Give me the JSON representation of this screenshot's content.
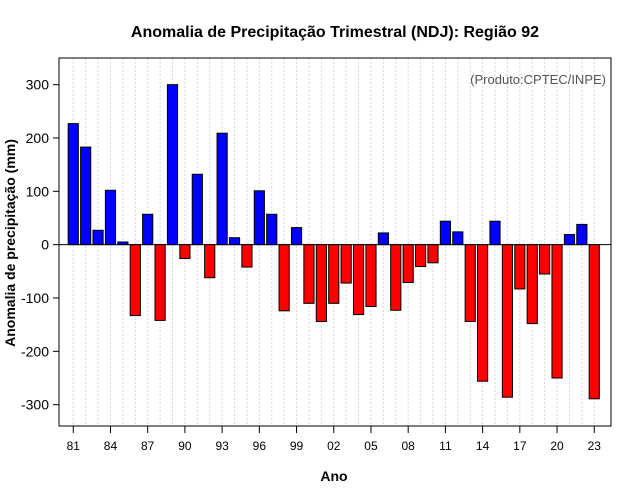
{
  "chart_data": {
    "type": "bar",
    "title": "Anomalia de Precipitação Trimestral (NDJ): Região 92",
    "xlabel": "Ano",
    "ylabel": "Anomalia de precipitação (mm)",
    "annotation": "(Produto:CPTEC/INPE)",
    "ylim": [
      -340,
      350
    ],
    "yticks": [
      300,
      200,
      100,
      0,
      -100,
      -200,
      -300
    ],
    "xtick_labels": [
      "81",
      "84",
      "87",
      "90",
      "93",
      "96",
      "99",
      "02",
      "05",
      "08",
      "11",
      "14",
      "17",
      "20",
      "23"
    ],
    "xtick_years": [
      1981,
      1984,
      1987,
      1990,
      1993,
      1996,
      1999,
      2002,
      2005,
      2008,
      2011,
      2014,
      2017,
      2020,
      2023
    ],
    "grid": true,
    "positive_color": "#0000ff",
    "negative_color": "#ff0000",
    "years": [
      1981,
      1982,
      1983,
      1984,
      1985,
      1986,
      1987,
      1988,
      1989,
      1990,
      1991,
      1992,
      1993,
      1994,
      1995,
      1996,
      1997,
      1998,
      1999,
      2000,
      2001,
      2002,
      2003,
      2004,
      2005,
      2006,
      2007,
      2008,
      2009,
      2010,
      2011,
      2012,
      2013,
      2014,
      2015,
      2016,
      2017,
      2018,
      2019,
      2020,
      2021,
      2022,
      2023
    ],
    "values": [
      227,
      183,
      27,
      102,
      5,
      -133,
      57,
      -142,
      300,
      -26,
      132,
      -62,
      209,
      13,
      -42,
      101,
      57,
      -124,
      32,
      -110,
      -144,
      -110,
      -72,
      -131,
      -116,
      22,
      -123,
      -71,
      -41,
      -34,
      44,
      24,
      -144,
      -256,
      44,
      -286,
      -83,
      -148,
      -55,
      -250,
      19,
      38,
      -289
    ]
  }
}
